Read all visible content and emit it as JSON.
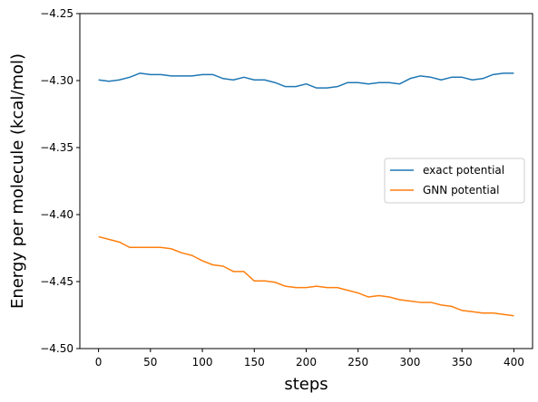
{
  "chart_data": {
    "type": "line",
    "title": "",
    "xlabel": "steps",
    "ylabel": "Energy per molecule (kcal/mol)",
    "xlim": [
      -18,
      418
    ],
    "ylim": [
      -4.5,
      -4.25
    ],
    "xticks": [
      0,
      50,
      100,
      150,
      200,
      250,
      300,
      350,
      400
    ],
    "yticks": [
      -4.5,
      -4.45,
      -4.4,
      -4.35,
      -4.3,
      -4.25
    ],
    "xtick_labels": [
      "0",
      "50",
      "100",
      "150",
      "200",
      "250",
      "300",
      "350",
      "400"
    ],
    "ytick_labels": [
      "−4.50",
      "−4.45",
      "−4.40",
      "−4.35",
      "−4.30",
      "−4.25"
    ],
    "grid": false,
    "legend_position": "center-right",
    "x": [
      0,
      10,
      20,
      30,
      40,
      50,
      60,
      70,
      80,
      90,
      100,
      110,
      120,
      130,
      140,
      150,
      160,
      170,
      180,
      190,
      200,
      210,
      220,
      230,
      240,
      250,
      260,
      270,
      280,
      290,
      300,
      310,
      320,
      330,
      340,
      350,
      360,
      370,
      380,
      390,
      400
    ],
    "series": [
      {
        "name": "exact potential",
        "color": "#1f77b4",
        "values": [
          -4.2995,
          -4.3005,
          -4.2995,
          -4.2975,
          -4.2945,
          -4.2955,
          -4.2955,
          -4.2965,
          -4.2965,
          -4.2965,
          -4.2955,
          -4.2955,
          -4.2985,
          -4.2995,
          -4.2975,
          -4.2995,
          -4.2995,
          -4.3015,
          -4.3045,
          -4.3045,
          -4.3025,
          -4.3055,
          -4.3055,
          -4.3045,
          -4.3015,
          -4.3015,
          -4.3025,
          -4.3015,
          -4.3015,
          -4.3025,
          -4.2985,
          -4.2965,
          -4.2975,
          -4.2995,
          -4.2975,
          -4.2975,
          -4.2995,
          -4.2985,
          -4.2955,
          -4.2945,
          -4.2945
        ]
      },
      {
        "name": "GNN potential",
        "color": "#ff7f0e",
        "values": [
          -4.4165,
          -4.4185,
          -4.4205,
          -4.4245,
          -4.4245,
          -4.4245,
          -4.4245,
          -4.4255,
          -4.4285,
          -4.4305,
          -4.4345,
          -4.4375,
          -4.4385,
          -4.4425,
          -4.4425,
          -4.4495,
          -4.4495,
          -4.4505,
          -4.4535,
          -4.4545,
          -4.4545,
          -4.4535,
          -4.4545,
          -4.4545,
          -4.4565,
          -4.4585,
          -4.4615,
          -4.4605,
          -4.4615,
          -4.4635,
          -4.4645,
          -4.4655,
          -4.4655,
          -4.4675,
          -4.4685,
          -4.4715,
          -4.4725,
          -4.4735,
          -4.4735,
          -4.4745,
          -4.4755
        ]
      }
    ]
  }
}
